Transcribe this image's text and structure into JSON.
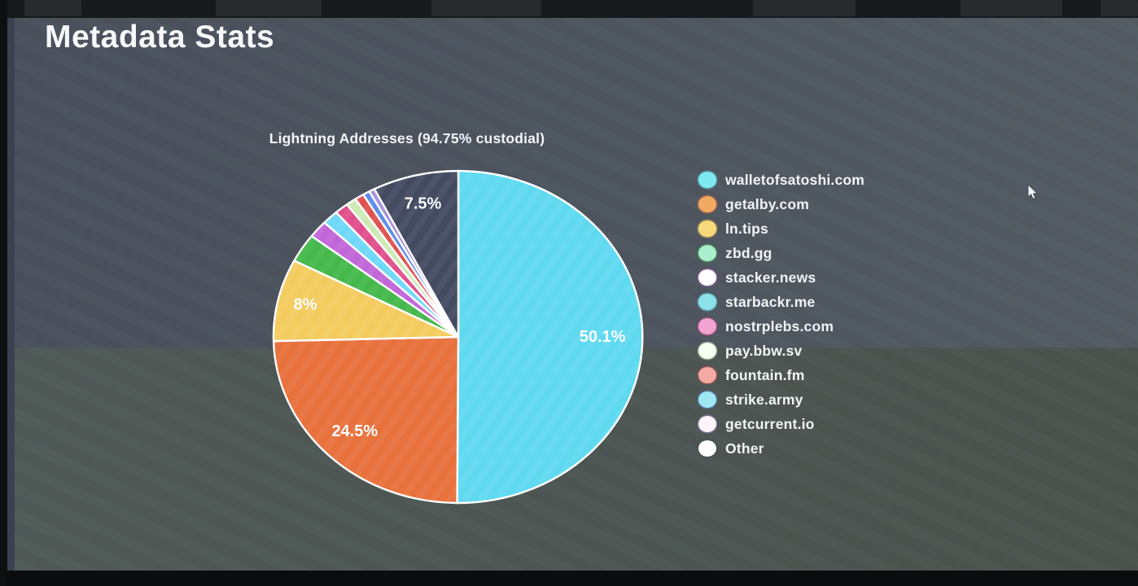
{
  "slide": {
    "title": "Metadata Stats"
  },
  "chart_data": {
    "type": "pie",
    "title": "Lightning Addresses (94.75% custodial)",
    "custodial_pct": "94.75%",
    "start_angle": "12-o-clock",
    "direction": "clockwise",
    "legend_position": "right",
    "slices": [
      {
        "label": "walletofsatoshi.com",
        "value": 50.1,
        "pct_label": "50.1%",
        "label_distance": 0.78,
        "color": "#5fd9f0",
        "legend_color": "#7fe9f0"
      },
      {
        "label": "getalby.com",
        "value": 24.5,
        "pct_label": "24.5%",
        "label_distance": 0.8,
        "color": "#e8713c",
        "legend_color": "#f2a963"
      },
      {
        "label": "ln.tips",
        "value": 8.0,
        "pct_label": "8%",
        "label_distance": 0.85,
        "color": "#f3cb5e",
        "legend_color": "#f8da7c"
      },
      {
        "label": "zbd.gg",
        "value": 2.8,
        "pct_label": null,
        "label_distance": null,
        "color": "#45b84c",
        "legend_color": "#aaeecb"
      },
      {
        "label": "stacker.news",
        "value": 1.7,
        "pct_label": null,
        "label_distance": null,
        "color": "#c166d8",
        "legend_color": "#fdfdfd"
      },
      {
        "label": "starbackr.me",
        "value": 1.4,
        "pct_label": null,
        "label_distance": null,
        "color": "#6fd8f8",
        "legend_color": "#8ce2ea"
      },
      {
        "label": "nostrplebs.com",
        "value": 1.2,
        "pct_label": null,
        "label_distance": null,
        "color": "#e04f8c",
        "legend_color": "#f2a3d2"
      },
      {
        "label": "pay.bbw.sv",
        "value": 0.9,
        "pct_label": null,
        "label_distance": null,
        "color": "#cdeab5",
        "legend_color": "#f6fff1"
      },
      {
        "label": "fountain.fm",
        "value": 0.8,
        "pct_label": null,
        "label_distance": null,
        "color": "#e05050",
        "legend_color": "#f3aaa2"
      },
      {
        "label": "strike.army",
        "value": 0.6,
        "pct_label": null,
        "label_distance": null,
        "color": "#5b8de8",
        "legend_color": "#9fe6f3"
      },
      {
        "label": "getcurrent.io",
        "value": 0.5,
        "pct_label": null,
        "label_distance": null,
        "color": "#a791d8",
        "legend_color": "#fdf5f9"
      },
      {
        "label": "Other",
        "value": 7.5,
        "pct_label": "7.5%",
        "label_distance": 0.82,
        "color": "#434b61",
        "legend_color": "#fdfdfd"
      }
    ]
  },
  "icons": {
    "cursor": "arrow-pointer",
    "legend_swatch": "circle"
  }
}
